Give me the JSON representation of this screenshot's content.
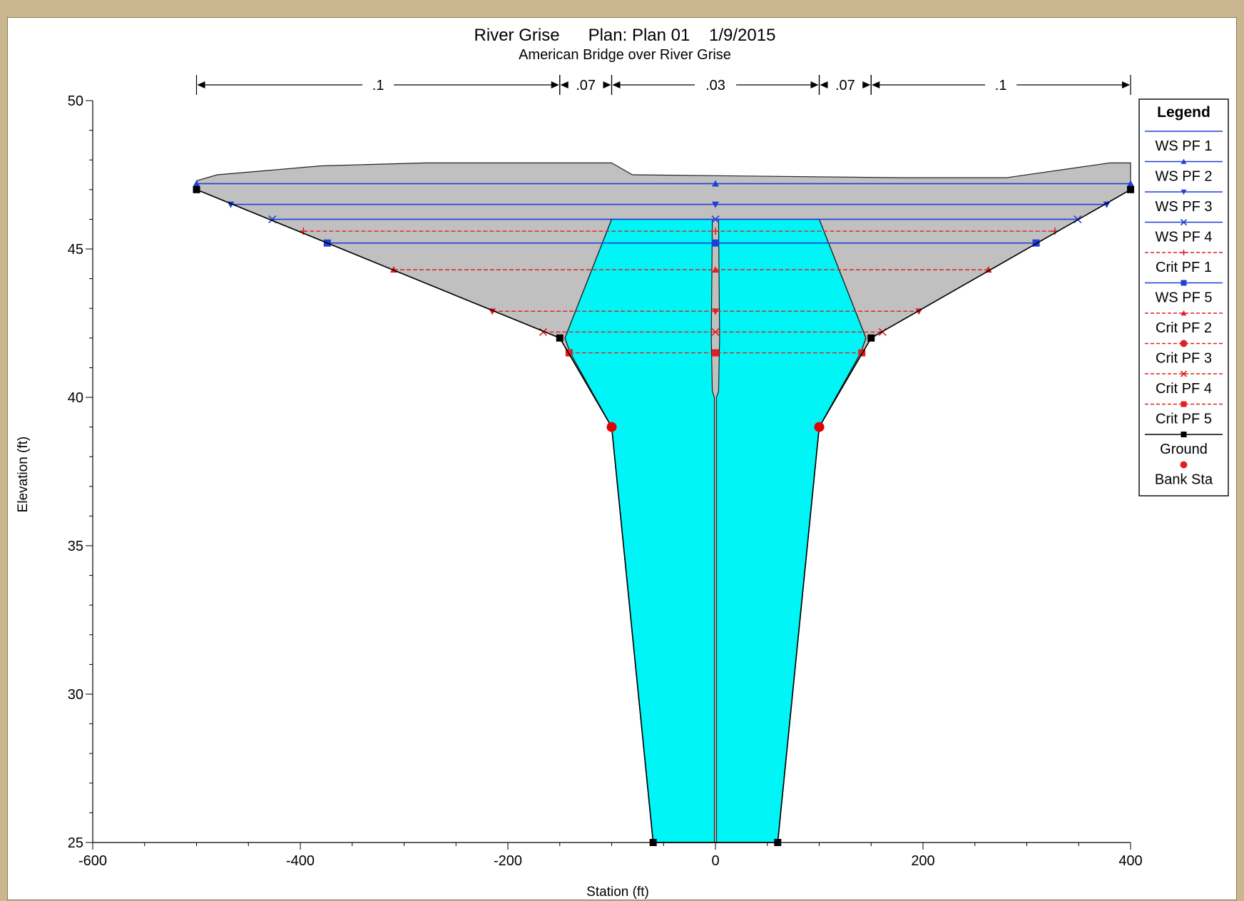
{
  "chart_data": {
    "type": "line",
    "title": "River Grise      Plan: Plan 01    1/9/2015",
    "subtitle": "American Bridge over River Grise",
    "xlabel": "Station (ft)",
    "ylabel": "Elevation (ft)",
    "xlim": [
      -600,
      400
    ],
    "ylim": [
      25,
      50
    ],
    "xticks": [
      "-600",
      "-400",
      "-200",
      "0",
      "200",
      "400"
    ],
    "yticks": [
      "25",
      "30",
      "35",
      "40",
      "45",
      "50"
    ],
    "x_tick_values": [
      -600,
      -400,
      -200,
      0,
      200,
      400
    ],
    "y_tick_values": [
      25,
      30,
      35,
      40,
      45,
      50
    ],
    "manning_n": [
      {
        "label": ".1",
        "from": -500,
        "to": -150
      },
      {
        "label": ".07",
        "from": -150,
        "to": -100
      },
      {
        "label": ".03",
        "from": -100,
        "to": 100
      },
      {
        "label": ".07",
        "from": 100,
        "to": 150
      },
      {
        "label": ".1",
        "from": 150,
        "to": 400
      }
    ],
    "deck_top": [
      [
        -500,
        47.3
      ],
      [
        -480,
        47.5
      ],
      [
        -380,
        47.8
      ],
      [
        -280,
        47.9
      ],
      [
        -100,
        47.9
      ],
      [
        -80,
        47.5
      ],
      [
        180,
        47.4
      ],
      [
        280,
        47.4
      ],
      [
        380,
        47.9
      ],
      [
        400,
        47.9
      ]
    ],
    "ground": [
      [
        -500,
        47
      ],
      [
        -150,
        42
      ],
      [
        -100,
        39
      ],
      [
        -60,
        25
      ],
      [
        60,
        25
      ],
      [
        100,
        39
      ],
      [
        150,
        42
      ],
      [
        400,
        47
      ]
    ],
    "pier": {
      "x": [
        -3,
        3
      ],
      "top": 46,
      "bottom": 25
    },
    "bridge_opening": {
      "left_top": [
        -100,
        46
      ],
      "right_top": [
        100,
        46
      ]
    },
    "bank_stations": [
      [
        -100,
        39
      ],
      [
        100,
        39
      ]
    ],
    "series": [
      {
        "name": "WS PF 1",
        "elevation": 47.2,
        "color": "#1f3fd6",
        "style": "solid",
        "marker": "triangle-up",
        "extent": [
          -500,
          400
        ]
      },
      {
        "name": "WS PF 2",
        "elevation": 46.5,
        "color": "#1f3fd6",
        "style": "solid",
        "marker": "triangle-down",
        "extent": [
          -467,
          377
        ]
      },
      {
        "name": "WS PF 3",
        "elevation": 46.0,
        "color": "#1f3fd6",
        "style": "solid",
        "marker": "x",
        "extent": [
          -427,
          349
        ]
      },
      {
        "name": "WS PF 4",
        "elevation": 45.6,
        "color": "#e02020",
        "style": "dashed",
        "marker": "plus",
        "extent": [
          -397,
          327
        ]
      },
      {
        "name": "Crit PF 1",
        "elevation": 45.2,
        "color": "#1f3fd6",
        "style": "solid",
        "marker": "square",
        "extent": [
          -374,
          309
        ]
      },
      {
        "name": "WS PF 5",
        "elevation": 44.3,
        "color": "#e02020",
        "style": "dashed",
        "marker": "triangle-up",
        "extent": [
          -310,
          263
        ]
      },
      {
        "name": "Crit PF 2",
        "elevation": 42.9,
        "color": "#e02020",
        "style": "dashed",
        "marker": "triangle-down",
        "extent": [
          -215,
          196
        ]
      },
      {
        "name": "Crit PF 3",
        "elevation": 42.2,
        "color": "#e02020",
        "style": "dashed",
        "marker": "x",
        "extent": [
          -166,
          161
        ]
      },
      {
        "name": "Crit PF 4",
        "elevation": 41.5,
        "color": "#e02020",
        "style": "dashed",
        "marker": "square",
        "extent": [
          -141,
          141
        ]
      }
    ],
    "legend": {
      "title": "Legend",
      "placement": "right",
      "entries": [
        {
          "name": "WS PF 1",
          "color": "#1f3fd6",
          "style": "solid",
          "marker": "none"
        },
        {
          "name": "WS PF 2",
          "color": "#1f3fd6",
          "style": "solid",
          "marker": "triangle-up"
        },
        {
          "name": "WS PF 3",
          "color": "#1f3fd6",
          "style": "solid",
          "marker": "triangle-down"
        },
        {
          "name": "WS PF 4",
          "color": "#1f3fd6",
          "style": "solid",
          "marker": "x"
        },
        {
          "name": "Crit PF 1",
          "color": "#e02020",
          "style": "dashed",
          "marker": "plus"
        },
        {
          "name": "WS PF 5",
          "color": "#1f3fd6",
          "style": "solid",
          "marker": "square"
        },
        {
          "name": "Crit PF 2",
          "color": "#e02020",
          "style": "dashed",
          "marker": "triangle-up"
        },
        {
          "name": "Crit PF 3",
          "color": "#e02020",
          "style": "dashed",
          "marker": "circle"
        },
        {
          "name": "Crit PF 4",
          "color": "#e02020",
          "style": "dashed",
          "marker": "x"
        },
        {
          "name": "Crit PF 5",
          "color": "#e02020",
          "style": "dashed",
          "marker": "square"
        },
        {
          "name": "Ground",
          "color": "#000000",
          "style": "solid",
          "marker": "square"
        },
        {
          "name": "Bank Sta",
          "color": "#e02020",
          "style": "none",
          "marker": "circle"
        }
      ]
    },
    "colors": {
      "water": "#00f5f7",
      "bridge_deck": "#c0c0c0",
      "ws_blue": "#1f3fd6",
      "crit_red": "#e02020",
      "ground": "#000000",
      "bank": "#e00000"
    }
  }
}
